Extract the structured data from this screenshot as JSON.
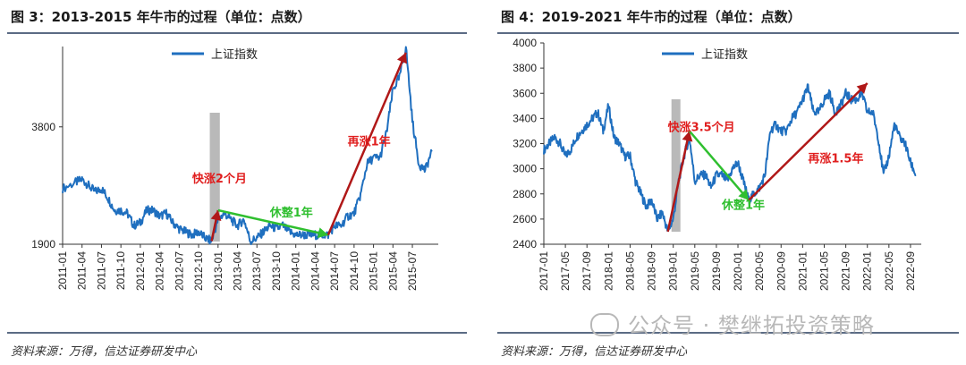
{
  "left": {
    "title": "图 3：2013-2015 年牛市的过程（单位：点数）",
    "source": "资料来源：万得，信达证券研发中心",
    "legend": "上证指数"
  },
  "right": {
    "title": "图 4：2019-2021 年牛市的过程（单位：点数）",
    "source": "资料来源：万得，信达证券研发中心",
    "legend": "上证指数"
  },
  "watermark": "公众号 · 樊继拓投资策略",
  "colors": {
    "line": "#1f6fbf",
    "arrow": "#b01818",
    "green": "#2fbf2f",
    "gray": "#b9b9b9",
    "red_text": "#e01e1e"
  },
  "chart_data": [
    {
      "type": "line",
      "series": [
        {
          "name": "上证指数",
          "points": [
            [
              "2011-01",
              2800
            ],
            [
              "2011-03",
              2900
            ],
            [
              "2011-04",
              2950
            ],
            [
              "2011-05",
              2850
            ],
            [
              "2011-06",
              2750
            ],
            [
              "2011-07",
              2800
            ],
            [
              "2011-08",
              2650
            ],
            [
              "2011-09",
              2450
            ],
            [
              "2011-10",
              2450
            ],
            [
              "2011-11",
              2400
            ],
            [
              "2011-12",
              2200
            ],
            [
              "2012-01",
              2250
            ],
            [
              "2012-02",
              2450
            ],
            [
              "2012-03",
              2450
            ],
            [
              "2012-04",
              2350
            ],
            [
              "2012-05",
              2400
            ],
            [
              "2012-06",
              2250
            ],
            [
              "2012-07",
              2150
            ],
            [
              "2012-08",
              2100
            ],
            [
              "2012-09",
              2050
            ],
            [
              "2012-10",
              2100
            ],
            [
              "2012-11",
              2000
            ],
            [
              "2012-12",
              1950
            ],
            [
              "2013-01",
              2300
            ],
            [
              "2013-02",
              2400
            ],
            [
              "2013-03",
              2300
            ],
            [
              "2013-04",
              2200
            ],
            [
              "2013-05",
              2300
            ],
            [
              "2013-06",
              1950
            ],
            [
              "2013-07",
              2000
            ],
            [
              "2013-08",
              2100
            ],
            [
              "2013-09",
              2200
            ],
            [
              "2013-10",
              2150
            ],
            [
              "2013-11",
              2200
            ],
            [
              "2013-12",
              2100
            ],
            [
              "2014-01",
              2050
            ],
            [
              "2014-02",
              2050
            ],
            [
              "2014-03",
              2050
            ],
            [
              "2014-04",
              2050
            ],
            [
              "2014-05",
              2050
            ],
            [
              "2014-06",
              2050
            ],
            [
              "2014-07",
              2200
            ],
            [
              "2014-08",
              2200
            ],
            [
              "2014-09",
              2350
            ],
            [
              "2014-10",
              2400
            ],
            [
              "2014-11",
              2700
            ],
            [
              "2014-12",
              3200
            ],
            [
              "2015-01",
              3300
            ],
            [
              "2015-02",
              3300
            ],
            [
              "2015-03",
              3700
            ],
            [
              "2015-04",
              4400
            ],
            [
              "2015-05",
              4600
            ],
            [
              "2015-06",
              5100
            ],
            [
              "2015-07",
              3900
            ],
            [
              "2015-08",
              3200
            ],
            [
              "2015-09",
              3100
            ],
            [
              "2015-10",
              3400
            ]
          ]
        }
      ],
      "yticks": [
        1900,
        3800
      ],
      "ylim": [
        1900,
        5100
      ],
      "xticks": [
        "2011-01",
        "2011-04",
        "2011-07",
        "2011-10",
        "2012-01",
        "2012-04",
        "2012-07",
        "2012-10",
        "2013-01",
        "2013-04",
        "2013-07",
        "2013-10",
        "2014-01",
        "2014-04",
        "2014-07",
        "2014-10",
        "2015-01",
        "2015-04",
        "2015-07"
      ],
      "shaded": [
        "2012-12",
        "2013-01"
      ],
      "arrows": [
        {
          "from": [
            "2012-12",
            1950
          ],
          "to": [
            "2013-01",
            2450
          ],
          "color": "arrow"
        },
        {
          "from": [
            "2013-01",
            2450
          ],
          "to": [
            "2014-06",
            2050
          ],
          "color": "green"
        },
        {
          "from": [
            "2014-06",
            2050
          ],
          "to": [
            "2015-06",
            5000
          ],
          "color": "arrow"
        }
      ],
      "annotations": [
        {
          "text": "快涨2个月",
          "at": [
            "2012-09",
            2900
          ],
          "color": "red_text"
        },
        {
          "text": "休整1年",
          "at": [
            "2013-09",
            2350
          ],
          "color": "green"
        },
        {
          "text": "再涨1年",
          "at": [
            "2014-09",
            3500
          ],
          "color": "red_text"
        }
      ]
    },
    {
      "type": "line",
      "series": [
        {
          "name": "上证指数",
          "points": [
            [
              "2017-01",
              3150
            ],
            [
              "2017-02",
              3200
            ],
            [
              "2017-03",
              3250
            ],
            [
              "2017-04",
              3200
            ],
            [
              "2017-05",
              3100
            ],
            [
              "2017-06",
              3150
            ],
            [
              "2017-07",
              3250
            ],
            [
              "2017-08",
              3300
            ],
            [
              "2017-09",
              3350
            ],
            [
              "2017-10",
              3400
            ],
            [
              "2017-11",
              3450
            ],
            [
              "2017-12",
              3300
            ],
            [
              "2018-01",
              3500
            ],
            [
              "2018-02",
              3250
            ],
            [
              "2018-03",
              3200
            ],
            [
              "2018-04",
              3100
            ],
            [
              "2018-05",
              3100
            ],
            [
              "2018-06",
              2900
            ],
            [
              "2018-07",
              2800
            ],
            [
              "2018-08",
              2700
            ],
            [
              "2018-09",
              2750
            ],
            [
              "2018-10",
              2600
            ],
            [
              "2018-11",
              2650
            ],
            [
              "2018-12",
              2500
            ],
            [
              "2019-01",
              2600
            ],
            [
              "2019-02",
              2900
            ],
            [
              "2019-03",
              3100
            ],
            [
              "2019-04",
              3250
            ],
            [
              "2019-05",
              2900
            ],
            [
              "2019-06",
              2950
            ],
            [
              "2019-07",
              2950
            ],
            [
              "2019-08",
              2850
            ],
            [
              "2019-09",
              2950
            ],
            [
              "2019-10",
              2950
            ],
            [
              "2019-11",
              2900
            ],
            [
              "2019-12",
              3000
            ],
            [
              "2020-01",
              3050
            ],
            [
              "2020-02",
              2900
            ],
            [
              "2020-03",
              2750
            ],
            [
              "2020-04",
              2800
            ],
            [
              "2020-05",
              2850
            ],
            [
              "2020-06",
              2950
            ],
            [
              "2020-07",
              3300
            ],
            [
              "2020-08",
              3350
            ],
            [
              "2020-09",
              3300
            ],
            [
              "2020-10",
              3300
            ],
            [
              "2020-11",
              3400
            ],
            [
              "2020-12",
              3450
            ],
            [
              "2021-01",
              3550
            ],
            [
              "2021-02",
              3650
            ],
            [
              "2021-03",
              3450
            ],
            [
              "2021-04",
              3450
            ],
            [
              "2021-05",
              3550
            ],
            [
              "2021-06",
              3600
            ],
            [
              "2021-07",
              3450
            ],
            [
              "2021-08",
              3500
            ],
            [
              "2021-09",
              3600
            ],
            [
              "2021-10",
              3550
            ],
            [
              "2021-11",
              3550
            ],
            [
              "2021-12",
              3600
            ],
            [
              "2022-01",
              3450
            ],
            [
              "2022-02",
              3450
            ],
            [
              "2022-03",
              3250
            ],
            [
              "2022-04",
              2950
            ],
            [
              "2022-05",
              3100
            ],
            [
              "2022-06",
              3350
            ],
            [
              "2022-07",
              3250
            ],
            [
              "2022-08",
              3200
            ],
            [
              "2022-09",
              3050
            ],
            [
              "2022-10",
              2950
            ]
          ]
        }
      ],
      "yticks": [
        2400,
        2600,
        2800,
        3000,
        3200,
        3400,
        3600,
        3800,
        4000
      ],
      "ylim": [
        2400,
        4000
      ],
      "xticks": [
        "2017-01",
        "2017-05",
        "2017-09",
        "2018-01",
        "2018-05",
        "2018-09",
        "2019-01",
        "2019-05",
        "2019-09",
        "2020-01",
        "2020-05",
        "2020-09",
        "2021-01",
        "2021-05",
        "2021-09",
        "2022-01",
        "2022-05",
        "2022-09"
      ],
      "shaded": [
        "2019-01",
        "2019-02"
      ],
      "arrows": [
        {
          "from": [
            "2018-12",
            2500
          ],
          "to": [
            "2019-04",
            3300
          ],
          "color": "arrow"
        },
        {
          "from": [
            "2019-04",
            3300
          ],
          "to": [
            "2020-03",
            2750
          ],
          "color": "green"
        },
        {
          "from": [
            "2020-03",
            2750
          ],
          "to": [
            "2022-01",
            3680
          ],
          "color": "arrow"
        }
      ],
      "annotations": [
        {
          "text": "快涨3.5个月",
          "at": [
            "2018-12",
            3300
          ],
          "color": "red_text"
        },
        {
          "text": "休整1年",
          "at": [
            "2019-10",
            2680
          ],
          "color": "green"
        },
        {
          "text": "再涨1.5年",
          "at": [
            "2021-02",
            3050
          ],
          "color": "red_text"
        }
      ]
    }
  ]
}
